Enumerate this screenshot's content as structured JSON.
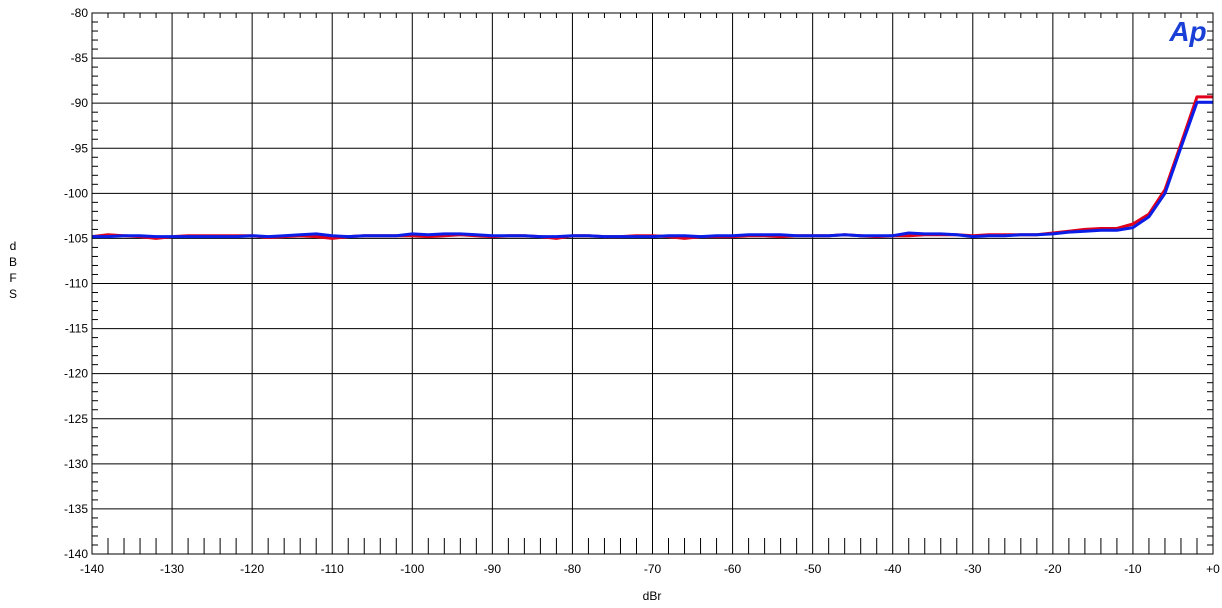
{
  "chart_data": {
    "type": "line",
    "xlabel": "dBr",
    "ylabel": "dBFS",
    "xlim": [
      -140,
      0
    ],
    "ylim": [
      -140,
      -80
    ],
    "grid": true,
    "x_ticks": [
      -140,
      -130,
      -120,
      -110,
      -100,
      -90,
      -80,
      -70,
      -60,
      -50,
      -40,
      -30,
      -20,
      -10,
      0
    ],
    "x_tick_labels": [
      "-140",
      "-130",
      "-120",
      "-110",
      "-100",
      "-90",
      "-80",
      "-70",
      "-60",
      "-50",
      "-40",
      "-30",
      "-20",
      "-10",
      "+0"
    ],
    "y_ticks": [
      -80,
      -85,
      -90,
      -95,
      -100,
      -105,
      -110,
      -115,
      -120,
      -125,
      -130,
      -135,
      -140
    ],
    "y_tick_labels": [
      "-80",
      "-85",
      "-90",
      "-95",
      "-100",
      "-105",
      "-110",
      "-115",
      "-120",
      "-125",
      "-130",
      "-135",
      "-140"
    ],
    "series": [
      {
        "color": "#e0001b",
        "x": [
          -140,
          -138,
          -136,
          -134,
          -132,
          -130,
          -128,
          -126,
          -124,
          -122,
          -120,
          -118,
          -116,
          -114,
          -112,
          -110,
          -108,
          -106,
          -104,
          -102,
          -100,
          -98,
          -96,
          -94,
          -92,
          -90,
          -88,
          -86,
          -84,
          -82,
          -80,
          -78,
          -76,
          -74,
          -72,
          -70,
          -68,
          -66,
          -64,
          -62,
          -60,
          -58,
          -56,
          -54,
          -52,
          -50,
          -48,
          -46,
          -44,
          -42,
          -40,
          -38,
          -36,
          -34,
          -32,
          -30,
          -28,
          -26,
          -24,
          -22,
          -20,
          -18,
          -16,
          -14,
          -12,
          -10,
          -8,
          -6,
          -4,
          -2,
          0
        ],
        "y": [
          -104.8,
          -104.6,
          -104.7,
          -104.8,
          -105.0,
          -104.8,
          -104.7,
          -104.7,
          -104.7,
          -104.7,
          -104.7,
          -104.9,
          -104.8,
          -104.7,
          -104.8,
          -105.0,
          -104.8,
          -104.7,
          -104.7,
          -104.7,
          -104.7,
          -104.8,
          -104.7,
          -104.6,
          -104.7,
          -104.8,
          -104.7,
          -104.7,
          -104.8,
          -105.0,
          -104.7,
          -104.7,
          -104.8,
          -104.8,
          -104.7,
          -104.7,
          -104.8,
          -105.0,
          -104.8,
          -104.8,
          -104.8,
          -104.7,
          -104.7,
          -104.8,
          -104.7,
          -104.7,
          -104.7,
          -104.6,
          -104.7,
          -104.8,
          -104.7,
          -104.7,
          -104.6,
          -104.6,
          -104.6,
          -104.7,
          -104.6,
          -104.6,
          -104.6,
          -104.6,
          -104.4,
          -104.2,
          -104.0,
          -103.9,
          -103.9,
          -103.4,
          -102.3,
          -99.6,
          -94.5,
          -89.3,
          -89.3
        ]
      },
      {
        "color": "#0a1ee8",
        "x": [
          -140,
          -138,
          -136,
          -134,
          -132,
          -130,
          -128,
          -126,
          -124,
          -122,
          -120,
          -118,
          -116,
          -114,
          -112,
          -110,
          -108,
          -106,
          -104,
          -102,
          -100,
          -98,
          -96,
          -94,
          -92,
          -90,
          -88,
          -86,
          -84,
          -82,
          -80,
          -78,
          -76,
          -74,
          -72,
          -70,
          -68,
          -66,
          -64,
          -62,
          -60,
          -58,
          -56,
          -54,
          -52,
          -50,
          -48,
          -46,
          -44,
          -42,
          -40,
          -38,
          -36,
          -34,
          -32,
          -30,
          -28,
          -26,
          -24,
          -22,
          -20,
          -18,
          -16,
          -14,
          -12,
          -10,
          -8,
          -6,
          -4,
          -2,
          0
        ],
        "y": [
          -104.8,
          -104.8,
          -104.7,
          -104.7,
          -104.8,
          -104.8,
          -104.8,
          -104.8,
          -104.8,
          -104.8,
          -104.7,
          -104.8,
          -104.7,
          -104.6,
          -104.5,
          -104.7,
          -104.8,
          -104.7,
          -104.7,
          -104.7,
          -104.5,
          -104.6,
          -104.5,
          -104.5,
          -104.6,
          -104.7,
          -104.7,
          -104.7,
          -104.8,
          -104.8,
          -104.7,
          -104.7,
          -104.8,
          -104.8,
          -104.8,
          -104.8,
          -104.7,
          -104.7,
          -104.8,
          -104.7,
          -104.7,
          -104.6,
          -104.6,
          -104.6,
          -104.7,
          -104.7,
          -104.7,
          -104.6,
          -104.7,
          -104.7,
          -104.7,
          -104.4,
          -104.5,
          -104.5,
          -104.6,
          -104.8,
          -104.7,
          -104.7,
          -104.6,
          -104.6,
          -104.5,
          -104.3,
          -104.2,
          -104.1,
          -104.1,
          -103.8,
          -102.6,
          -100.0,
          -94.9,
          -89.9,
          -89.9
        ]
      }
    ],
    "logo_text": "Ap",
    "logo_color": "#1a3fd6"
  }
}
